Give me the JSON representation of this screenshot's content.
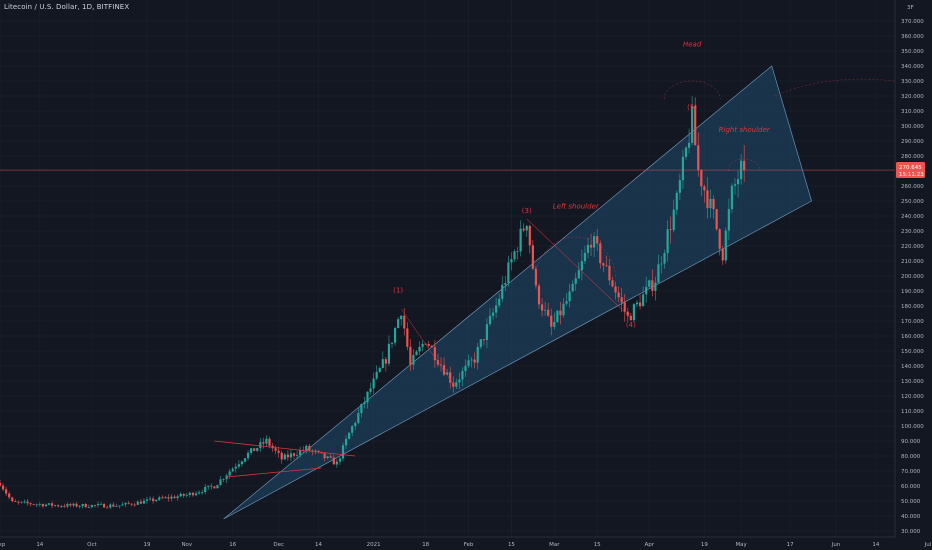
{
  "header": {
    "title": "Litecoin / U.S. Dollar, 1D, BITFINEX"
  },
  "colors": {
    "background": "#131722",
    "grid": "#1e222d",
    "up_candle": "#26a69a",
    "down_candle": "#ef5350",
    "triangle_fill": "#1f4a6e",
    "triangle_edge": "#6b8fb0",
    "annotation": "#e0343c",
    "price_line": "#ef5350"
  },
  "price_label": {
    "value": "270.645",
    "countdown": "15:11:23"
  },
  "axis_corner": "3F",
  "chart_data": {
    "type": "candlestick",
    "y_scale": "linear",
    "ylim": [
      25,
      382
    ],
    "y_ticks": [
      "30.000",
      "40.000",
      "50.000",
      "60.000",
      "70.000",
      "80.000",
      "90.000",
      "100.000",
      "110.000",
      "120.000",
      "130.000",
      "140.000",
      "150.000",
      "160.000",
      "170.000",
      "180.000",
      "190.000",
      "200.000",
      "210.000",
      "220.000",
      "230.000",
      "240.000",
      "250.000",
      "260.000",
      "270.000",
      "280.000",
      "290.000",
      "300.000",
      "310.000",
      "320.000",
      "330.000",
      "340.000",
      "350.000",
      "360.000",
      "370.000"
    ],
    "x_ticks": [
      {
        "label": "Sep",
        "date": "2020-09-01"
      },
      {
        "label": "14",
        "date": "2020-09-14"
      },
      {
        "label": "Oct",
        "date": "2020-10-01"
      },
      {
        "label": "19",
        "date": "2020-10-19"
      },
      {
        "label": "Nov",
        "date": "2020-11-01"
      },
      {
        "label": "16",
        "date": "2020-11-16"
      },
      {
        "label": "Dec",
        "date": "2020-12-01"
      },
      {
        "label": "14",
        "date": "2020-12-14"
      },
      {
        "label": "2021",
        "date": "2021-01-01"
      },
      {
        "label": "18",
        "date": "2021-01-18"
      },
      {
        "label": "Feb",
        "date": "2021-02-01"
      },
      {
        "label": "15",
        "date": "2021-02-15"
      },
      {
        "label": "Mar",
        "date": "2021-03-01"
      },
      {
        "label": "15",
        "date": "2021-03-15"
      },
      {
        "label": "Apr",
        "date": "2021-04-01"
      },
      {
        "label": "19",
        "date": "2021-04-19"
      },
      {
        "label": "May",
        "date": "2021-05-01"
      },
      {
        "label": "17",
        "date": "2021-05-17"
      },
      {
        "label": "Jun",
        "date": "2021-06-01"
      },
      {
        "label": "14",
        "date": "2021-06-14"
      },
      {
        "label": "Jul",
        "date": "2021-07-01"
      }
    ],
    "price_anchors": [
      {
        "date": "2020-09-01",
        "close": 62
      },
      {
        "date": "2020-09-05",
        "close": 49
      },
      {
        "date": "2020-09-20",
        "close": 47
      },
      {
        "date": "2020-10-10",
        "close": 47
      },
      {
        "date": "2020-10-22",
        "close": 51
      },
      {
        "date": "2020-11-01",
        "close": 54
      },
      {
        "date": "2020-11-10",
        "close": 60
      },
      {
        "date": "2020-11-20",
        "close": 80
      },
      {
        "date": "2020-11-27",
        "close": 90
      },
      {
        "date": "2020-12-02",
        "close": 78
      },
      {
        "date": "2020-12-10",
        "close": 85
      },
      {
        "date": "2020-12-20",
        "close": 75
      },
      {
        "date": "2020-12-24",
        "close": 95
      },
      {
        "date": "2020-12-31",
        "close": 125
      },
      {
        "date": "2021-01-05",
        "close": 145
      },
      {
        "date": "2021-01-10",
        "close": 178
      },
      {
        "date": "2021-01-13",
        "close": 140
      },
      {
        "date": "2021-01-18",
        "close": 158
      },
      {
        "date": "2021-01-27",
        "close": 128
      },
      {
        "date": "2021-02-03",
        "close": 145
      },
      {
        "date": "2021-02-10",
        "close": 180
      },
      {
        "date": "2021-02-15",
        "close": 210
      },
      {
        "date": "2021-02-20",
        "close": 238
      },
      {
        "date": "2021-02-23",
        "close": 190
      },
      {
        "date": "2021-02-28",
        "close": 165
      },
      {
        "date": "2021-03-07",
        "close": 190
      },
      {
        "date": "2021-03-13",
        "close": 225
      },
      {
        "date": "2021-03-20",
        "close": 195
      },
      {
        "date": "2021-03-25",
        "close": 172
      },
      {
        "date": "2021-04-03",
        "close": 198
      },
      {
        "date": "2021-04-10",
        "close": 250
      },
      {
        "date": "2021-04-15",
        "close": 305
      },
      {
        "date": "2021-04-17",
        "close": 270
      },
      {
        "date": "2021-04-22",
        "close": 240
      },
      {
        "date": "2021-04-25",
        "close": 215
      },
      {
        "date": "2021-04-28",
        "close": 255
      },
      {
        "date": "2021-05-02",
        "close": 277
      }
    ],
    "current_price": 270.645,
    "annotations": [
      {
        "text": "Head",
        "date": "2021-04-15",
        "price": 353
      },
      {
        "text": "Right shoulder",
        "date": "2021-05-02",
        "price": 296
      },
      {
        "text": "Left shoulder",
        "date": "2021-03-08",
        "price": 245
      },
      {
        "text": "(5)",
        "date": "2021-04-15",
        "price": 311
      },
      {
        "text": "(3)",
        "date": "2021-02-20",
        "price": 242
      },
      {
        "text": "(1)",
        "date": "2021-01-09",
        "price": 189
      },
      {
        "text": "(4)",
        "date": "2021-03-26",
        "price": 166
      }
    ]
  }
}
